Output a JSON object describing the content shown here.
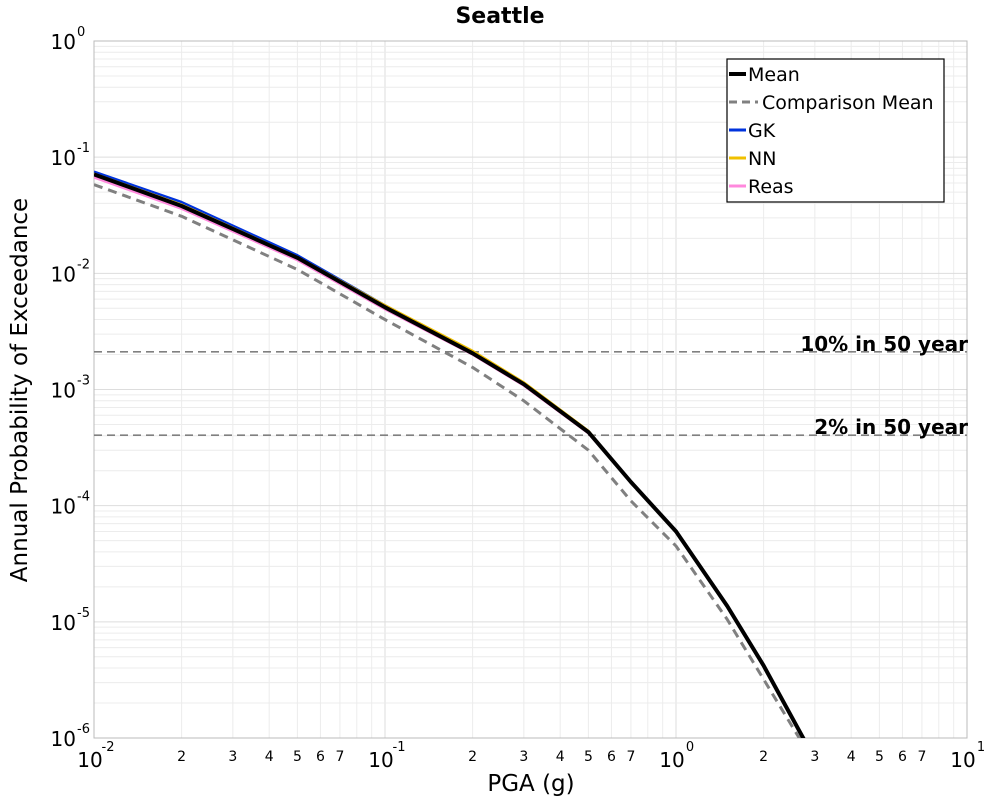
{
  "chart_data": {
    "type": "line",
    "title": "Seattle",
    "xlabel": "PGA (g)",
    "ylabel": "Annual Probability of Exceedance",
    "xscale": "log",
    "yscale": "log",
    "xlim": [
      0.01,
      10
    ],
    "ylim": [
      1e-06,
      1
    ],
    "grid": true,
    "legend_position": "top-right",
    "x_major_ticks": [
      {
        "base": "10",
        "exp": "-2"
      },
      {
        "base": "10",
        "exp": "-1"
      },
      {
        "base": "10",
        "exp": "0"
      },
      {
        "base": "10",
        "exp": "1"
      }
    ],
    "y_major_ticks": [
      {
        "base": "10",
        "exp": "0"
      },
      {
        "base": "10",
        "exp": "-1"
      },
      {
        "base": "10",
        "exp": "-2"
      },
      {
        "base": "10",
        "exp": "-3"
      },
      {
        "base": "10",
        "exp": "-4"
      },
      {
        "base": "10",
        "exp": "-5"
      },
      {
        "base": "10",
        "exp": "-6"
      }
    ],
    "x_minor_tick_labels": [
      "2",
      "3",
      "4",
      "5",
      "6",
      "7"
    ],
    "series": [
      {
        "name": "GK",
        "color": "#0033dd",
        "style": "solid",
        "x": [
          0.01,
          0.02,
          0.05,
          0.1,
          0.2,
          0.3,
          0.5,
          0.7,
          1.0,
          1.5,
          2.0,
          2.8
        ],
        "y": [
          0.075,
          0.041,
          0.0143,
          0.0053,
          0.00208,
          0.00112,
          0.00043,
          0.00016,
          6e-05,
          1.37e-05,
          4.2e-06,
          9e-07
        ]
      },
      {
        "name": "NN",
        "color": "#f0c000",
        "style": "solid",
        "x": [
          0.01,
          0.02,
          0.05,
          0.1,
          0.2,
          0.3,
          0.5,
          0.7,
          1.0,
          1.5,
          2.0,
          2.8
        ],
        "y": [
          0.072,
          0.039,
          0.0138,
          0.0053,
          0.00215,
          0.00115,
          0.00044,
          0.00016,
          6e-05,
          1.37e-05,
          4.2e-06,
          9e-07
        ]
      },
      {
        "name": "Reas",
        "color": "#ff88dd",
        "style": "solid",
        "x": [
          0.01,
          0.02,
          0.05,
          0.1,
          0.2,
          0.3,
          0.5,
          0.7,
          1.0,
          1.5,
          2.0,
          2.8
        ],
        "y": [
          0.067,
          0.036,
          0.013,
          0.0049,
          0.002,
          0.00108,
          0.00042,
          0.00016,
          6e-05,
          1.37e-05,
          4.2e-06,
          9e-07
        ]
      },
      {
        "name": "Mean",
        "color": "#000000",
        "style": "solid",
        "x": [
          0.01,
          0.02,
          0.05,
          0.1,
          0.2,
          0.3,
          0.5,
          0.7,
          1.0,
          1.5,
          2.0,
          2.8
        ],
        "y": [
          0.071,
          0.038,
          0.0136,
          0.0051,
          0.00205,
          0.00111,
          0.00043,
          0.00016,
          6e-05,
          1.37e-05,
          4.2e-06,
          9e-07
        ]
      },
      {
        "name": "Comparison Mean",
        "color": "#808080",
        "style": "dashed",
        "x": [
          0.01,
          0.02,
          0.05,
          0.1,
          0.2,
          0.3,
          0.5,
          0.7,
          1.0,
          1.5,
          2.0,
          2.8
        ],
        "y": [
          0.058,
          0.031,
          0.0108,
          0.004,
          0.00155,
          0.0008,
          0.0003,
          0.00011,
          4.5e-05,
          1.05e-05,
          3.2e-06,
          8e-07
        ]
      }
    ],
    "legend_order": [
      "Mean",
      "Comparison Mean",
      "GK",
      "NN",
      "Reas"
    ],
    "reference_lines": [
      {
        "label": "10% in 50 year",
        "y": 0.00211
      },
      {
        "label": "2% in 50 year",
        "y": 0.000404
      }
    ]
  }
}
